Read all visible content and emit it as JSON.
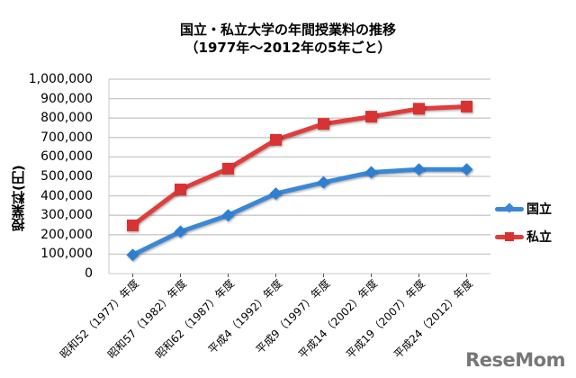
{
  "chart_data": {
    "type": "line",
    "title": "国立・私立大学の年間授業料の推移",
    "subtitle": "（1977年〜2012年の5年ごと）",
    "xlabel": "",
    "ylabel": "授業料(円)",
    "ylim": [
      0,
      1000000
    ],
    "yticks": [
      "1,000,000",
      "900,000",
      "800,000",
      "700,000",
      "600,000",
      "500,000",
      "400,000",
      "300,000",
      "200,000",
      "100,000",
      "0"
    ],
    "grid": true,
    "legend_position": "right",
    "categories": [
      "昭和52（1977）年度",
      "昭和57（1982）年度",
      "昭和62（1987）年度",
      "平成4（1992）年度",
      "平成9（1997）年度",
      "平成14（2002）年度",
      "平成19（2007）年度",
      "平成24（2012）年度"
    ],
    "series": [
      {
        "name": "国立",
        "color": "#3a87d6",
        "marker": "diamond",
        "values": [
          96000,
          216000,
          300000,
          411600,
          469200,
          520800,
          535800,
          535800
        ]
      },
      {
        "name": "私立",
        "color": "#e03c3c",
        "marker": "square",
        "values": [
          248066,
          432884,
          539591,
          688046,
          770024,
          807413,
          848178,
          859367
        ]
      }
    ]
  },
  "legend": {
    "national": "国立",
    "private": "私立"
  },
  "watermark": "ReseMom"
}
